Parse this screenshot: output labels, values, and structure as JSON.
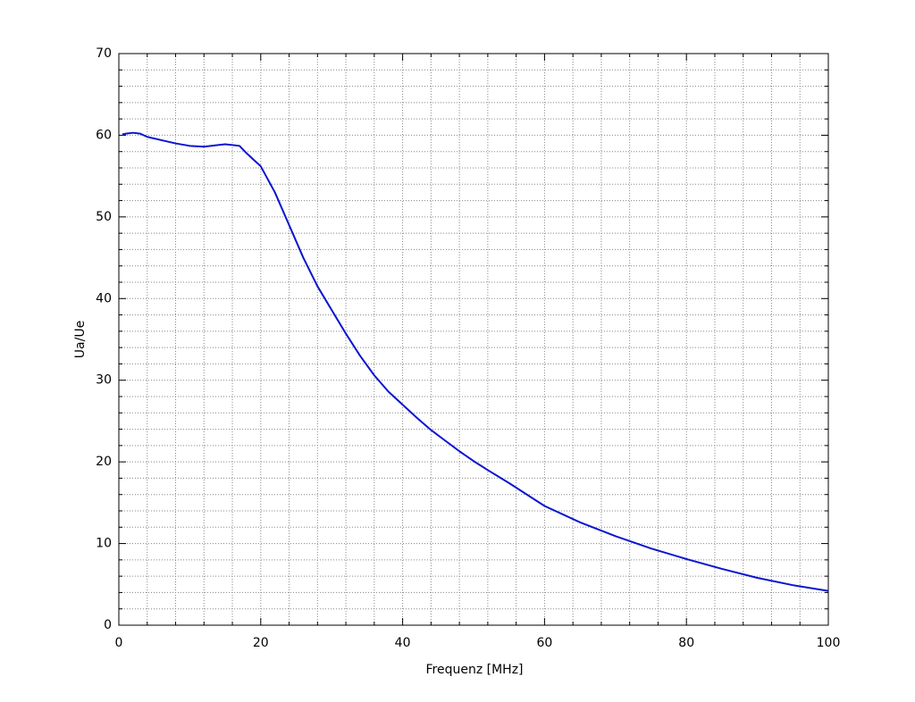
{
  "chart_data": {
    "type": "line",
    "x_label": "Frequenz [MHz]",
    "y_label": "Ua/Ue",
    "x": [
      0.5,
      1,
      2,
      3,
      4,
      6,
      8,
      10,
      12,
      14,
      15,
      16,
      17,
      18,
      19,
      20,
      22,
      24,
      26,
      28,
      30,
      32,
      34,
      36,
      38,
      40,
      42,
      44,
      46,
      48,
      50,
      52,
      55,
      60,
      65,
      70,
      75,
      80,
      85,
      90,
      95,
      100
    ],
    "series": [
      {
        "color": "#0a14d0",
        "values": [
          60.1,
          60.2,
          60.3,
          60.2,
          59.8,
          59.4,
          59.0,
          58.7,
          58.6,
          58.8,
          58.9,
          58.8,
          58.7,
          57.8,
          57.0,
          56.2,
          53.0,
          49.0,
          45.0,
          41.5,
          38.6,
          35.7,
          33.0,
          30.6,
          28.6,
          27.0,
          25.4,
          23.9,
          22.6,
          21.3,
          20.1,
          19.0,
          17.4,
          14.6,
          12.6,
          10.9,
          9.4,
          8.1,
          6.9,
          5.8,
          4.9,
          4.2
        ]
      }
    ],
    "xlim": [
      0,
      100
    ],
    "xticks": [
      0,
      20,
      40,
      60,
      80,
      100
    ],
    "ylim": [
      0,
      70
    ],
    "yticks": [
      0,
      10,
      20,
      30,
      40,
      50,
      60,
      70
    ],
    "grid": true
  }
}
